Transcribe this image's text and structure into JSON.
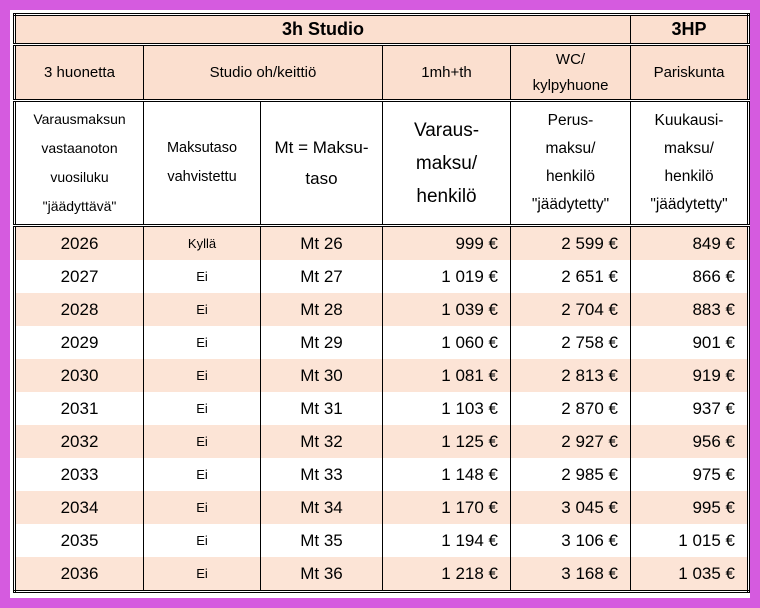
{
  "frame": {
    "border_color": "#D55BDF",
    "header_fill": "#FBDFCF",
    "stripe_fill": "#FCE4D6"
  },
  "table": {
    "group_headers": {
      "studio": "3h Studio",
      "hp": "3HP"
    },
    "type_headers": {
      "rooms": "3 huonetta",
      "studio_kitchen": "Studio oh/keittiö",
      "bedroom": "1mh+th",
      "wc": "WC/\nkylpyhuone",
      "couple": "Pariskunta"
    },
    "column_headers": {
      "year": "Varausmaksun\nvastaanoton\nvuosiluku\n\"jäädyttävä\"",
      "confirmed": "Maksutaso\nvahvistettu",
      "mt": "Mt = Maksu-\ntaso",
      "varausmaksu": "Varaus-\nmaksu/\nhenkilö",
      "perusmaksu": "Perus-\nmaksu/\nhenkilö\n\"jäädytetty\"",
      "kuukausimaksu": "Kuukausi-\nmaksu/\nhenkilö\n\"jäädytetty\""
    },
    "rows": [
      {
        "year": "2026",
        "confirmed": "Kyllä",
        "mt": "Mt 26",
        "varausmaksu": "999 €",
        "perusmaksu": "2 599 €",
        "kuukausimaksu": "849 €"
      },
      {
        "year": "2027",
        "confirmed": "Ei",
        "mt": "Mt 27",
        "varausmaksu": "1 019 €",
        "perusmaksu": "2 651 €",
        "kuukausimaksu": "866 €"
      },
      {
        "year": "2028",
        "confirmed": "Ei",
        "mt": "Mt 28",
        "varausmaksu": "1 039 €",
        "perusmaksu": "2 704 €",
        "kuukausimaksu": "883 €"
      },
      {
        "year": "2029",
        "confirmed": "Ei",
        "mt": "Mt 29",
        "varausmaksu": "1 060 €",
        "perusmaksu": "2 758 €",
        "kuukausimaksu": "901 €"
      },
      {
        "year": "2030",
        "confirmed": "Ei",
        "mt": "Mt 30",
        "varausmaksu": "1 081 €",
        "perusmaksu": "2 813 €",
        "kuukausimaksu": "919 €"
      },
      {
        "year": "2031",
        "confirmed": "Ei",
        "mt": "Mt 31",
        "varausmaksu": "1 103 €",
        "perusmaksu": "2 870 €",
        "kuukausimaksu": "937 €"
      },
      {
        "year": "2032",
        "confirmed": "Ei",
        "mt": "Mt 32",
        "varausmaksu": "1 125 €",
        "perusmaksu": "2 927 €",
        "kuukausimaksu": "956 €"
      },
      {
        "year": "2033",
        "confirmed": "Ei",
        "mt": "Mt 33",
        "varausmaksu": "1 148 €",
        "perusmaksu": "2 985 €",
        "kuukausimaksu": "975 €"
      },
      {
        "year": "2034",
        "confirmed": "Ei",
        "mt": "Mt 34",
        "varausmaksu": "1 170 €",
        "perusmaksu": "3 045 €",
        "kuukausimaksu": "995 €"
      },
      {
        "year": "2035",
        "confirmed": "Ei",
        "mt": "Mt 35",
        "varausmaksu": "1 194 €",
        "perusmaksu": "3 106 €",
        "kuukausimaksu": "1 015 €"
      },
      {
        "year": "2036",
        "confirmed": "Ei",
        "mt": "Mt 36",
        "varausmaksu": "1 218 €",
        "perusmaksu": "3 168 €",
        "kuukausimaksu": "1 035 €"
      }
    ]
  }
}
